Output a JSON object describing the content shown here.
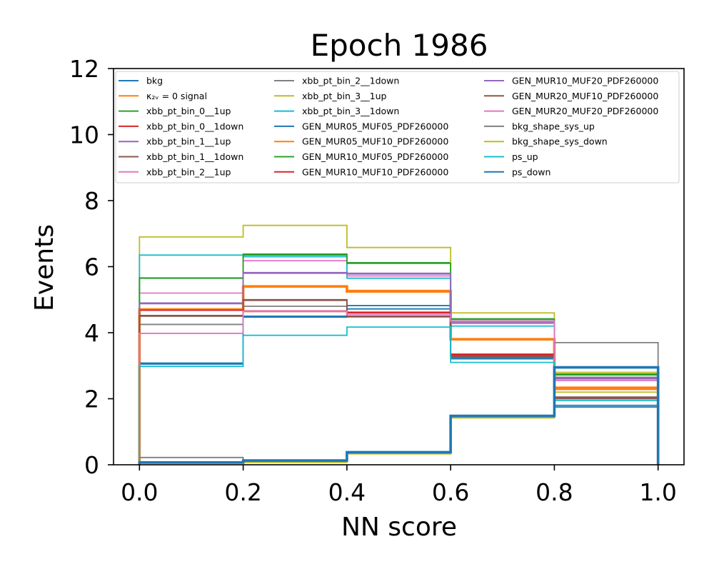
{
  "chart_data": {
    "type": "step",
    "title": "Epoch 1986",
    "xlabel": "NN score",
    "ylabel": "Events",
    "xlim": [
      -0.05,
      1.05
    ],
    "ylim": [
      0,
      12
    ],
    "xticks": [
      "0.0",
      "0.2",
      "0.4",
      "0.6",
      "0.8",
      "1.0"
    ],
    "yticks": [
      "0",
      "2",
      "4",
      "6",
      "8",
      "10",
      "12"
    ],
    "bin_edges": [
      0.0,
      0.2,
      0.4,
      0.6,
      0.8,
      1.0
    ],
    "grid": false,
    "legend_position": "top",
    "legend_columns": 3,
    "series": [
      {
        "name": "bkg",
        "color": "#1f77b4",
        "values": [
          3.05,
          4.47,
          4.72,
          3.21,
          1.75
        ]
      },
      {
        "name": "κ₂ᵥ = 0 signal",
        "color": "#ff7f0e",
        "values": [
          4.7,
          5.4,
          5.25,
          3.8,
          2.3
        ]
      },
      {
        "name": "xbb_pt_bin_0__1up",
        "color": "#2ca02c",
        "values": [
          5.65,
          6.38,
          6.12,
          4.42,
          2.75
        ]
      },
      {
        "name": "xbb_pt_bin_0__1down",
        "color": "#d62728",
        "values": [
          4.7,
          4.66,
          4.62,
          3.35,
          2.0
        ]
      },
      {
        "name": "xbb_pt_bin_1__1up",
        "color": "#9467bd",
        "values": [
          4.9,
          5.8,
          5.8,
          4.3,
          2.6
        ]
      },
      {
        "name": "xbb_pt_bin_1__1down",
        "color": "#8c564b",
        "values": [
          4.5,
          4.98,
          4.48,
          3.3,
          2.0
        ]
      },
      {
        "name": "xbb_pt_bin_2__1up",
        "color": "#e377c2",
        "values": [
          5.2,
          6.18,
          5.72,
          4.28,
          2.65
        ]
      },
      {
        "name": "xbb_pt_bin_2__1down",
        "color": "#7f7f7f",
        "values": [
          4.25,
          4.8,
          4.5,
          3.25,
          3.7
        ]
      },
      {
        "name": "xbb_pt_bin_3__1up",
        "color": "#bcbd22",
        "values": [
          6.9,
          7.25,
          6.58,
          4.6,
          2.2
        ]
      },
      {
        "name": "xbb_pt_bin_3__1down",
        "color": "#17becf",
        "values": [
          6.35,
          6.3,
          5.65,
          4.2,
          2.0
        ]
      },
      {
        "name": "GEN_MUR05_MUF05_PDF260000",
        "color": "#1f77b4",
        "values": [
          3.08,
          4.5,
          4.82,
          3.25,
          1.8
        ]
      },
      {
        "name": "GEN_MUR05_MUF10_PDF260000",
        "color": "#ff7f0e",
        "values": [
          4.72,
          5.42,
          5.28,
          3.82,
          2.35
        ]
      },
      {
        "name": "GEN_MUR10_MUF05_PDF260000",
        "color": "#2ca02c",
        "values": [
          5.66,
          6.35,
          6.1,
          4.4,
          2.72
        ]
      },
      {
        "name": "GEN_MUR10_MUF10_PDF260000",
        "color": "#d62728",
        "values": [
          4.68,
          4.64,
          4.6,
          3.33,
          2.02
        ]
      },
      {
        "name": "GEN_MUR10_MUF20_PDF260000",
        "color": "#9467bd",
        "values": [
          4.88,
          5.82,
          5.78,
          4.32,
          2.62
        ]
      },
      {
        "name": "GEN_MUR20_MUF10_PDF260000",
        "color": "#8c564b",
        "values": [
          4.52,
          5.0,
          4.5,
          3.28,
          2.05
        ]
      },
      {
        "name": "GEN_MUR20_MUF20_PDF260000",
        "color": "#e377c2",
        "values": [
          3.98,
          4.65,
          4.55,
          4.35,
          2.55
        ]
      },
      {
        "name": "bkg_shape_sys_up",
        "color": "#7f7f7f",
        "values": [
          0.22,
          0.1,
          0.36,
          1.45,
          2.65
        ]
      },
      {
        "name": "bkg_shape_sys_down",
        "color": "#bcbd22",
        "values": [
          0.05,
          0.07,
          0.33,
          1.42,
          2.8
        ]
      },
      {
        "name": "ps_up",
        "color": "#17becf",
        "values": [
          2.98,
          3.92,
          4.17,
          3.1,
          1.95
        ]
      },
      {
        "name": "ps_down",
        "color": "#1f77b4",
        "values": [
          0.07,
          0.13,
          0.38,
          1.48,
          2.95
        ]
      }
    ]
  }
}
